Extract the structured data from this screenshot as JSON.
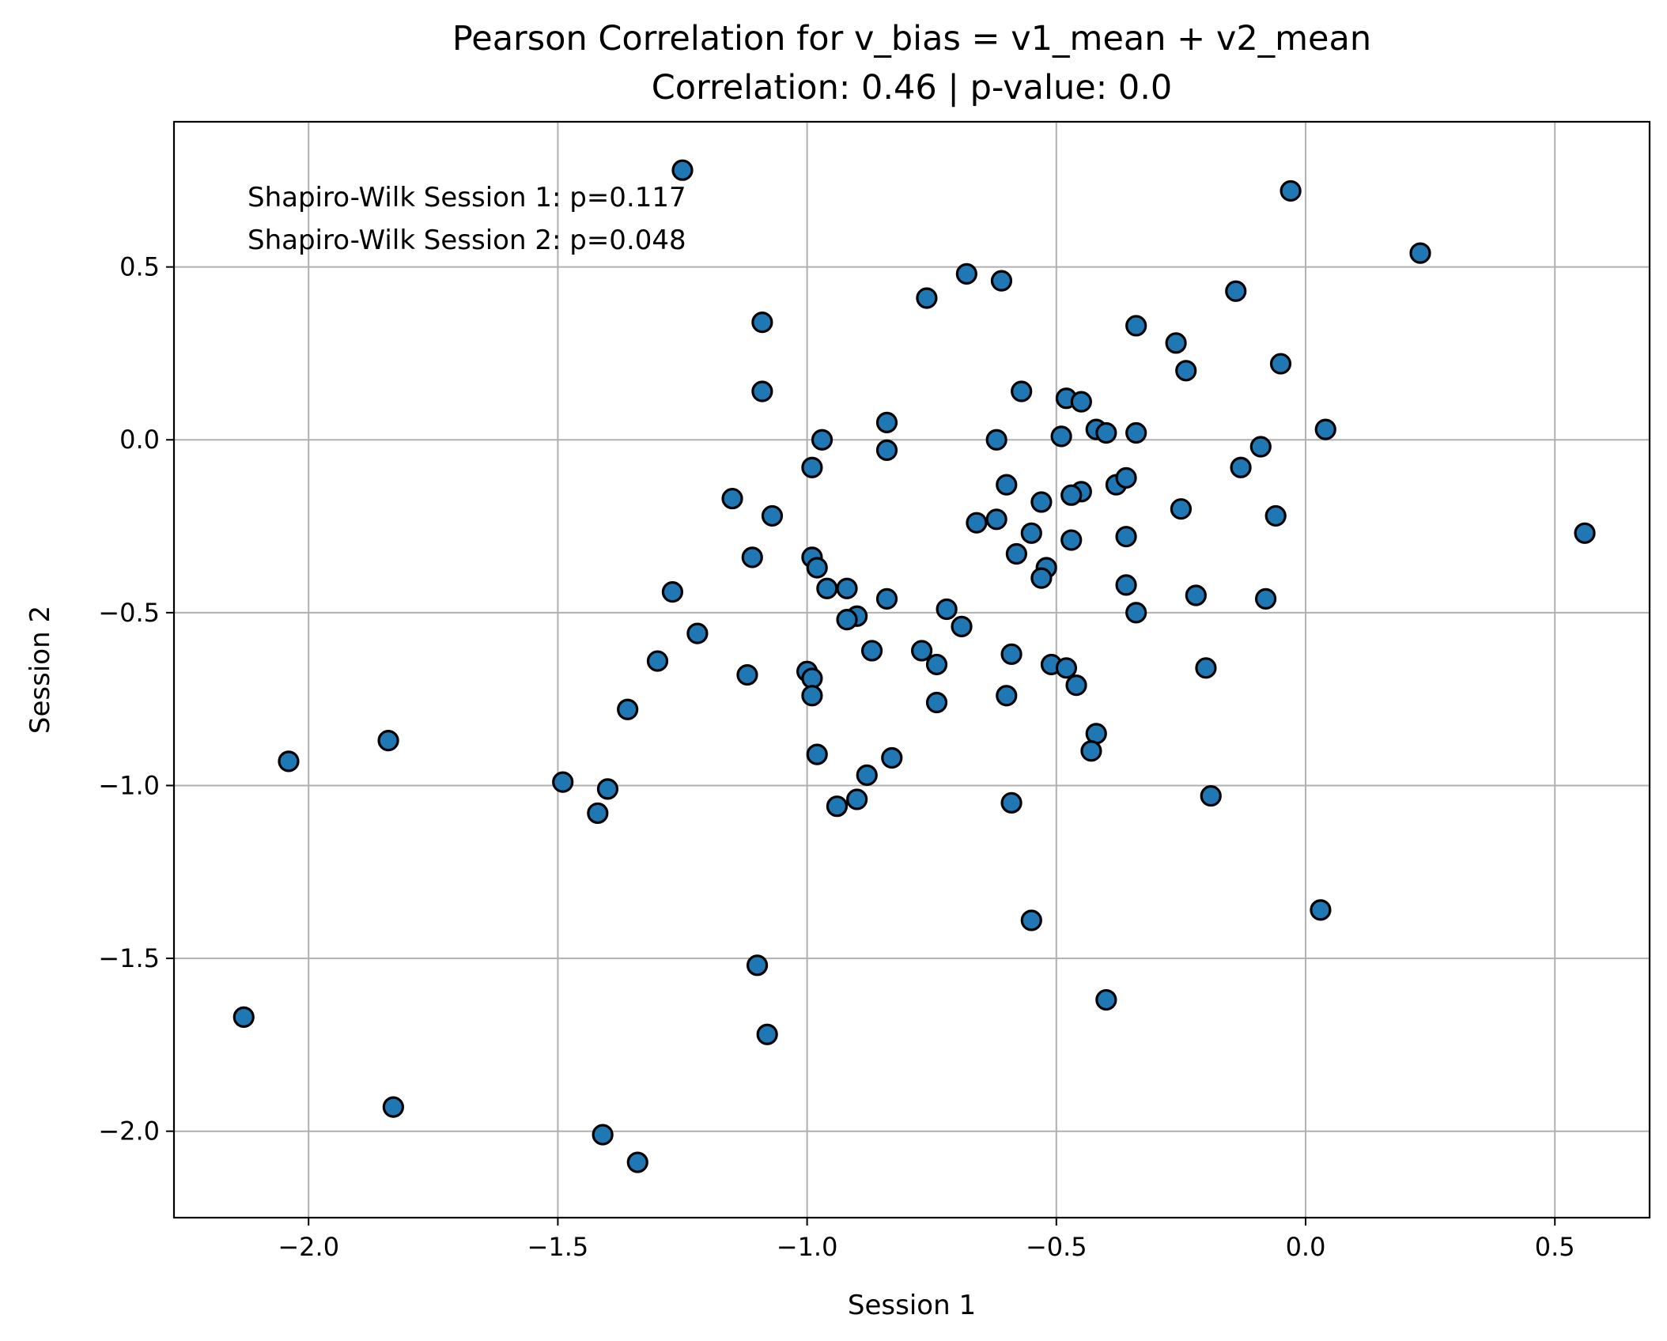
{
  "chart_data": {
    "type": "scatter",
    "title": "Pearson Correlation for v_bias = v1_mean + v2_mean",
    "subtitle": "Correlation: 0.46 | p-value: 0.0",
    "xlabel": "Session 1",
    "ylabel": "Session 2",
    "xlim": [
      -2.27,
      0.69
    ],
    "ylim": [
      -2.25,
      0.92
    ],
    "xticks": [
      -2.0,
      -1.5,
      -1.0,
      -0.5,
      0.0,
      0.5
    ],
    "xtick_labels": [
      "−2.0",
      "−1.5",
      "−1.0",
      "−0.5",
      "0.0",
      "0.5"
    ],
    "yticks": [
      -2.0,
      -1.5,
      -1.0,
      -0.5,
      0.0,
      0.5
    ],
    "ytick_labels": [
      "−2.0",
      "−1.5",
      "−1.0",
      "−0.5",
      "0.0",
      "0.5"
    ],
    "grid": true,
    "annotations": [
      "Shapiro-Wilk Session 1: p=0.117",
      "Shapiro-Wilk Session 2: p=0.048"
    ],
    "marker_color": "#1f77b4",
    "marker_edge_color": "#000000",
    "points": [
      [
        -1.25,
        0.78
      ],
      [
        -0.03,
        0.72
      ],
      [
        0.23,
        0.54
      ],
      [
        -0.68,
        0.48
      ],
      [
        -0.61,
        0.46
      ],
      [
        -0.76,
        0.41
      ],
      [
        -0.14,
        0.43
      ],
      [
        -1.09,
        0.34
      ],
      [
        -0.34,
        0.33
      ],
      [
        -0.26,
        0.28
      ],
      [
        -0.24,
        0.2
      ],
      [
        -0.05,
        0.22
      ],
      [
        -1.09,
        0.14
      ],
      [
        -0.57,
        0.14
      ],
      [
        -0.48,
        0.12
      ],
      [
        -0.45,
        0.11
      ],
      [
        -0.84,
        0.05
      ],
      [
        -0.42,
        0.03
      ],
      [
        -0.4,
        0.02
      ],
      [
        -0.34,
        0.02
      ],
      [
        0.04,
        0.03
      ],
      [
        -0.97,
        0.0
      ],
      [
        -0.62,
        0.0
      ],
      [
        -0.49,
        0.01
      ],
      [
        -0.09,
        -0.02
      ],
      [
        -0.84,
        -0.03
      ],
      [
        -0.99,
        -0.08
      ],
      [
        -0.13,
        -0.08
      ],
      [
        -0.6,
        -0.13
      ],
      [
        -0.38,
        -0.13
      ],
      [
        -0.36,
        -0.11
      ],
      [
        -0.45,
        -0.15
      ],
      [
        -0.47,
        -0.16
      ],
      [
        -0.53,
        -0.18
      ],
      [
        -1.15,
        -0.17
      ],
      [
        -1.07,
        -0.22
      ],
      [
        -0.66,
        -0.24
      ],
      [
        -0.62,
        -0.23
      ],
      [
        -0.25,
        -0.2
      ],
      [
        -0.06,
        -0.22
      ],
      [
        -0.55,
        -0.27
      ],
      [
        -0.47,
        -0.29
      ],
      [
        -0.36,
        -0.28
      ],
      [
        0.56,
        -0.27
      ],
      [
        -1.11,
        -0.34
      ],
      [
        -0.99,
        -0.34
      ],
      [
        -0.58,
        -0.33
      ],
      [
        -0.98,
        -0.37
      ],
      [
        -0.52,
        -0.37
      ],
      [
        -0.53,
        -0.4
      ],
      [
        -0.96,
        -0.43
      ],
      [
        -0.92,
        -0.43
      ],
      [
        -0.36,
        -0.42
      ],
      [
        -1.27,
        -0.44
      ],
      [
        -0.22,
        -0.45
      ],
      [
        -0.84,
        -0.46
      ],
      [
        -0.08,
        -0.46
      ],
      [
        -0.72,
        -0.49
      ],
      [
        -0.34,
        -0.5
      ],
      [
        -0.9,
        -0.51
      ],
      [
        -0.92,
        -0.52
      ],
      [
        -0.69,
        -0.54
      ],
      [
        -1.22,
        -0.56
      ],
      [
        -0.87,
        -0.61
      ],
      [
        -0.77,
        -0.61
      ],
      [
        -0.59,
        -0.62
      ],
      [
        -1.3,
        -0.64
      ],
      [
        -0.74,
        -0.65
      ],
      [
        -0.51,
        -0.65
      ],
      [
        -0.48,
        -0.66
      ],
      [
        -0.2,
        -0.66
      ],
      [
        -1.0,
        -0.67
      ],
      [
        -1.12,
        -0.68
      ],
      [
        -0.99,
        -0.69
      ],
      [
        -0.46,
        -0.71
      ],
      [
        -0.99,
        -0.74
      ],
      [
        -0.6,
        -0.74
      ],
      [
        -0.74,
        -0.76
      ],
      [
        -1.36,
        -0.78
      ],
      [
        -0.42,
        -0.85
      ],
      [
        -1.84,
        -0.87
      ],
      [
        -0.43,
        -0.9
      ],
      [
        -0.98,
        -0.91
      ],
      [
        -0.83,
        -0.92
      ],
      [
        -2.04,
        -0.93
      ],
      [
        -0.88,
        -0.97
      ],
      [
        -1.49,
        -0.99
      ],
      [
        -1.4,
        -1.01
      ],
      [
        -0.19,
        -1.03
      ],
      [
        -0.9,
        -1.04
      ],
      [
        -0.59,
        -1.05
      ],
      [
        -0.94,
        -1.06
      ],
      [
        -1.42,
        -1.08
      ],
      [
        -0.55,
        -1.39
      ],
      [
        0.03,
        -1.36
      ],
      [
        -1.1,
        -1.52
      ],
      [
        -0.4,
        -1.62
      ],
      [
        -2.13,
        -1.67
      ],
      [
        -1.08,
        -1.72
      ],
      [
        -1.83,
        -1.93
      ],
      [
        -1.41,
        -2.01
      ],
      [
        -1.34,
        -2.09
      ]
    ]
  }
}
